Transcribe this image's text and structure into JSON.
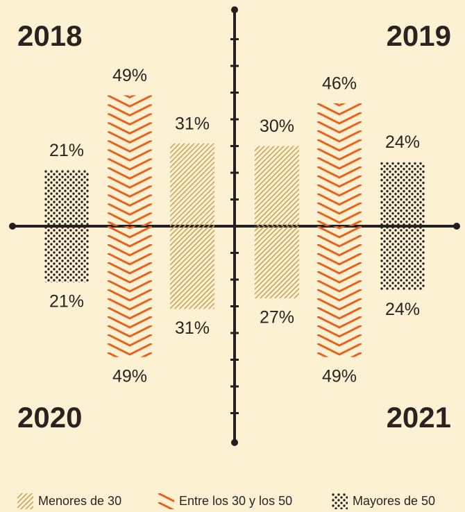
{
  "chart_data": {
    "type": "bar",
    "series": [
      {
        "name": "Menores de 30",
        "color": "#c9a55c",
        "pattern": "diagonal"
      },
      {
        "name": "Entre los 30 y los 50",
        "color": "#e8601c",
        "pattern": "chevron"
      },
      {
        "name": "Mayores de  50",
        "color": "#2b2320",
        "pattern": "dots"
      }
    ],
    "panels": [
      {
        "title": "2018",
        "values": [
          31,
          49,
          21
        ],
        "value_labels": [
          "31%",
          "49%",
          "21%"
        ]
      },
      {
        "title": "2019",
        "values": [
          30,
          46,
          24
        ],
        "value_labels": [
          "30%",
          "46%",
          "24%"
        ]
      },
      {
        "title": "2020",
        "values": [
          31,
          49,
          21
        ],
        "value_labels": [
          "31%",
          "49%",
          "21%"
        ]
      },
      {
        "title": "2021",
        "values": [
          27,
          49,
          24
        ],
        "value_labels": [
          "27%",
          "49%",
          "24%"
        ]
      }
    ],
    "ylim": [
      0,
      81
    ],
    "yticks": [
      10,
      20,
      30,
      40,
      50,
      60,
      70
    ]
  }
}
